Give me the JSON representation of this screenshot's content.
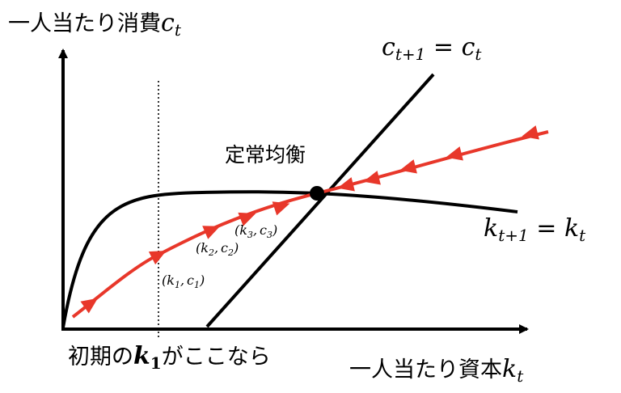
{
  "labels": {
    "y_axis_text": "一人当たり消費",
    "y_axis_var": "c",
    "y_axis_sub": "t",
    "x_axis_text": "一人当たり資本",
    "x_axis_var": "k",
    "x_axis_sub": "t",
    "initial_prefix": "初期の",
    "initial_var": "k",
    "initial_sub": "1",
    "initial_suffix": "がここなら",
    "steady_state": "定常均衡",
    "c_locus_lhs_var": "c",
    "c_locus_lhs_sub": "t+1",
    "c_locus_eq": " = ",
    "c_locus_rhs_var": "c",
    "c_locus_rhs_sub": "t",
    "k_locus_lhs_var": "k",
    "k_locus_lhs_sub": "t+1",
    "k_locus_eq": " = ",
    "k_locus_rhs_var": "k",
    "k_locus_rhs_sub": "t"
  },
  "points": [
    {
      "open": "(",
      "k": "k",
      "k_sub": "1",
      "sep": ",",
      "c": "c",
      "c_sub": "1",
      "close": ")"
    },
    {
      "open": "(",
      "k": "k",
      "k_sub": "2",
      "sep": ",",
      "c": "c",
      "c_sub": "2",
      "close": ")"
    },
    {
      "open": "(",
      "k": "k",
      "k_sub": "3",
      "sep": ",",
      "c": "c",
      "c_sub": "3",
      "close": ")"
    }
  ],
  "colors": {
    "axis": "#000000",
    "curves": "#000000",
    "saddle_path": "#e8372a",
    "arrows": "#e8372a",
    "steady_state_dot": "#000000"
  }
}
